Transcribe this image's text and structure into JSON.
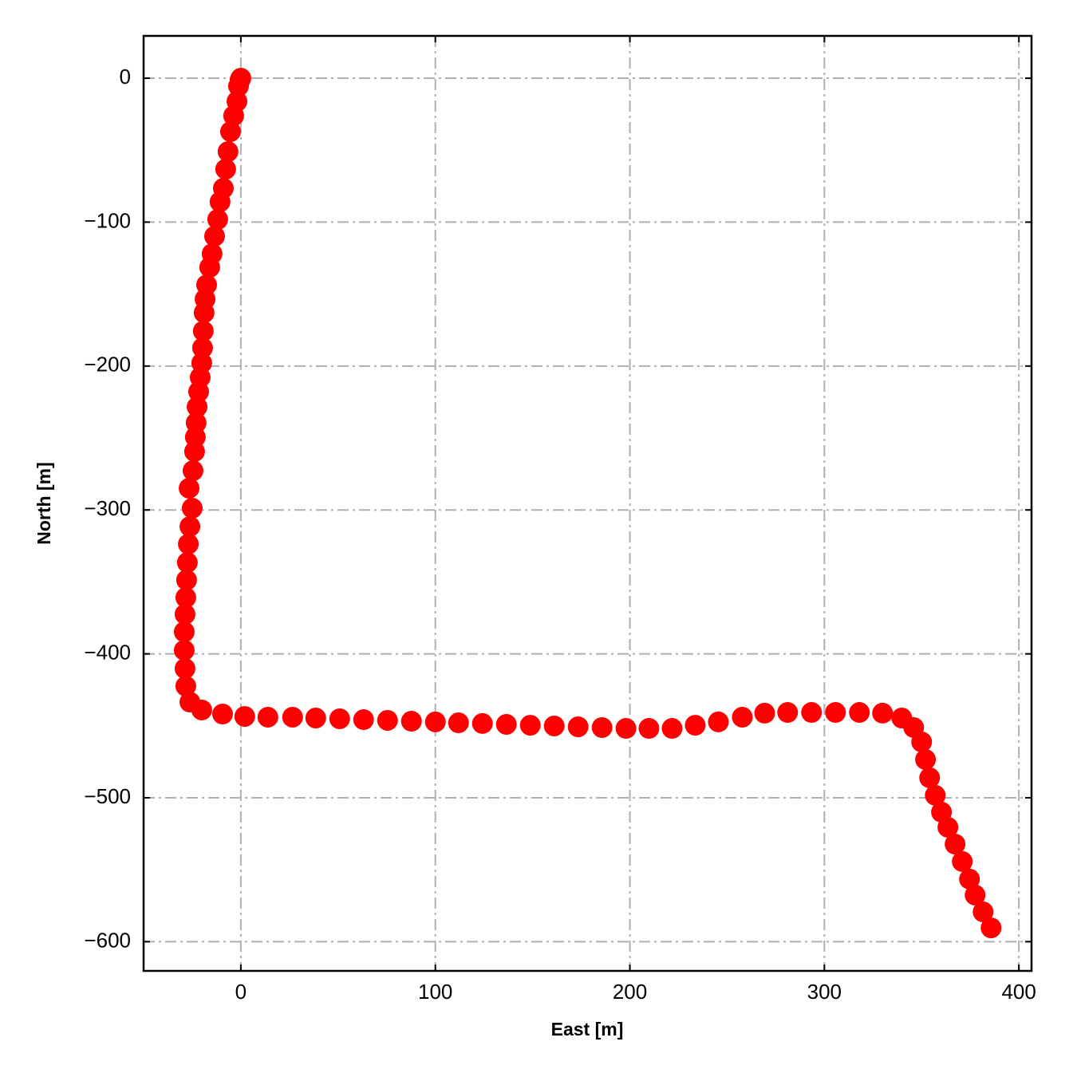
{
  "chart_data": {
    "type": "scatter",
    "x_label": "East [m]",
    "y_label": "North [m]",
    "color": "#ff0000",
    "grid": true,
    "xlim": [
      -50,
      406.5
    ],
    "ylim": [
      -620.3,
      29.4
    ],
    "xticks": [
      0,
      100,
      200,
      300,
      400
    ],
    "yticks": [
      0,
      {
        "value": -100,
        "label": "−100"
      },
      {
        "value": -200,
        "label": "−200"
      },
      {
        "value": -300,
        "label": "−300"
      },
      {
        "value": -400,
        "label": "−400"
      },
      {
        "value": -500,
        "label": "−500"
      },
      {
        "value": -600,
        "label": "−600"
      }
    ],
    "x": [
      0,
      -0.4,
      -1.2,
      -2.0,
      -3.7,
      -5.3,
      -6.6,
      -7.8,
      -9.0,
      -10.7,
      -11.9,
      -13.5,
      -14.8,
      -16.0,
      -17.6,
      -18.4,
      -18.9,
      -19.3,
      -19.7,
      -20.1,
      -20.9,
      -21.7,
      -22.5,
      -23.0,
      -23.4,
      -23.8,
      -24.6,
      -26.6,
      -25.0,
      -26.2,
      -27.0,
      -27.5,
      -27.9,
      -28.3,
      -28.7,
      -29.1,
      -29.1,
      -28.7,
      -28.3,
      -26.2,
      -20.1,
      -9.4,
      2.0,
      13.9,
      26.6,
      38.5,
      50.8,
      63.1,
      75.4,
      87.7,
      100,
      111.9,
      124.2,
      136.5,
      148.8,
      161.1,
      173.4,
      185.7,
      198.0,
      209.8,
      221.7,
      233.6,
      245.5,
      257.8,
      269.3,
      281.1,
      293.4,
      305.7,
      318.0,
      329.9,
      339.8,
      345.9,
      350.0,
      352.0,
      354.1,
      357.0,
      360.2,
      363.5,
      367.2,
      370.9,
      374.6,
      377.5,
      381.6,
      385.7
    ],
    "values": [
      0,
      -1.1,
      -5.5,
      -16.1,
      -26.1,
      -37.1,
      -51.0,
      -63.2,
      -76.5,
      -85.9,
      -98.1,
      -109.8,
      -122.0,
      -131.4,
      -143.6,
      -153.5,
      -163.0,
      -175.7,
      -187.4,
      -197.9,
      -207.9,
      -217.8,
      -228.4,
      -239.5,
      -249.4,
      -259.4,
      -272.7,
      -284.9,
      -298.8,
      -311.5,
      -323.7,
      -336.5,
      -348.7,
      -360.9,
      -372.5,
      -384.7,
      -397.5,
      -410.2,
      -422.4,
      -433.5,
      -439.0,
      -441.8,
      -443.5,
      -444.0,
      -444.0,
      -444.6,
      -445.1,
      -445.7,
      -446.2,
      -446.8,
      -447.3,
      -447.9,
      -448.4,
      -449.0,
      -449.6,
      -450.1,
      -450.7,
      -451.2,
      -451.8,
      -451.8,
      -451.8,
      -449.6,
      -447.3,
      -444.0,
      -441.2,
      -440.7,
      -440.7,
      -440.7,
      -440.7,
      -441.2,
      -444.6,
      -451.2,
      -461.2,
      -473.4,
      -486.1,
      -498.3,
      -510.0,
      -520.5,
      -532.2,
      -544.3,
      -556.5,
      -567.6,
      -579.3,
      -590.4
    ]
  }
}
